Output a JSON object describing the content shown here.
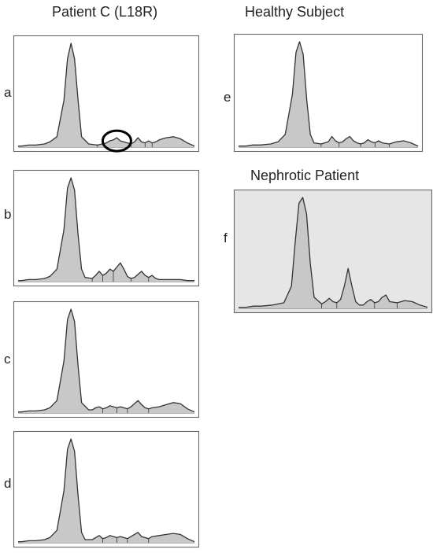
{
  "titles": {
    "left": "Patient C (L18R)",
    "right_top": "Healthy Subject",
    "right_bottom": "Nephrotic Patient"
  },
  "colors": {
    "trace": "#333333",
    "fill": "#c8c8c8",
    "frame": "#666666",
    "shaded_background": "#e6e6e6",
    "highlight_circle": "#000000"
  },
  "chart_data": [
    {
      "type": "area",
      "panel": "a",
      "group": "Patient C (L18R)",
      "x": [
        0.0,
        0.02,
        0.06,
        0.1,
        0.15,
        0.18,
        0.22,
        0.26,
        0.28,
        0.3,
        0.32,
        0.34,
        0.36,
        0.4,
        0.45,
        0.5,
        0.52,
        0.54,
        0.56,
        0.58,
        0.6,
        0.62,
        0.64,
        0.66,
        0.68,
        0.7,
        0.72,
        0.74,
        0.76,
        0.78,
        0.8,
        0.84,
        0.88,
        0.92,
        0.96,
        1.0
      ],
      "y": [
        0.01,
        0.01,
        0.02,
        0.02,
        0.03,
        0.05,
        0.1,
        0.45,
        0.85,
        1.0,
        0.85,
        0.45,
        0.1,
        0.03,
        0.02,
        0.04,
        0.06,
        0.07,
        0.09,
        0.06,
        0.05,
        0.04,
        0.03,
        0.05,
        0.09,
        0.05,
        0.04,
        0.06,
        0.04,
        0.05,
        0.07,
        0.09,
        0.1,
        0.08,
        0.04,
        0.01
      ],
      "marker": "circle around the small peak at x≈0.55"
    },
    {
      "type": "area",
      "panel": "b",
      "group": "Patient C (L18R)",
      "x": [
        0.0,
        0.02,
        0.06,
        0.1,
        0.15,
        0.18,
        0.22,
        0.26,
        0.28,
        0.3,
        0.32,
        0.34,
        0.36,
        0.38,
        0.42,
        0.44,
        0.46,
        0.48,
        0.5,
        0.52,
        0.54,
        0.56,
        0.58,
        0.6,
        0.62,
        0.64,
        0.66,
        0.68,
        0.7,
        0.72,
        0.74,
        0.76,
        0.78,
        0.8,
        0.84,
        0.88,
        0.92,
        0.96,
        1.0
      ],
      "y": [
        0.01,
        0.01,
        0.02,
        0.02,
        0.03,
        0.05,
        0.12,
        0.5,
        0.9,
        1.0,
        0.88,
        0.45,
        0.12,
        0.04,
        0.03,
        0.06,
        0.1,
        0.06,
        0.08,
        0.12,
        0.1,
        0.14,
        0.18,
        0.12,
        0.05,
        0.03,
        0.04,
        0.07,
        0.1,
        0.06,
        0.04,
        0.06,
        0.03,
        0.02,
        0.02,
        0.02,
        0.02,
        0.01,
        0.01
      ]
    },
    {
      "type": "area",
      "panel": "c",
      "group": "Patient C (L18R)",
      "x": [
        0.0,
        0.02,
        0.06,
        0.1,
        0.15,
        0.18,
        0.22,
        0.26,
        0.28,
        0.3,
        0.32,
        0.34,
        0.36,
        0.4,
        0.42,
        0.44,
        0.46,
        0.48,
        0.5,
        0.52,
        0.54,
        0.56,
        0.58,
        0.6,
        0.62,
        0.64,
        0.66,
        0.68,
        0.7,
        0.72,
        0.74,
        0.76,
        0.8,
        0.84,
        0.88,
        0.92,
        0.96,
        1.0
      ],
      "y": [
        0.01,
        0.01,
        0.02,
        0.02,
        0.03,
        0.05,
        0.12,
        0.5,
        0.9,
        1.0,
        0.88,
        0.45,
        0.1,
        0.03,
        0.03,
        0.05,
        0.06,
        0.04,
        0.05,
        0.07,
        0.06,
        0.05,
        0.06,
        0.05,
        0.04,
        0.06,
        0.09,
        0.12,
        0.08,
        0.05,
        0.04,
        0.05,
        0.06,
        0.08,
        0.1,
        0.09,
        0.04,
        0.01
      ]
    },
    {
      "type": "area",
      "panel": "d",
      "group": "Patient C (L18R)",
      "x": [
        0.0,
        0.02,
        0.06,
        0.1,
        0.15,
        0.18,
        0.22,
        0.26,
        0.28,
        0.3,
        0.32,
        0.34,
        0.36,
        0.38,
        0.42,
        0.44,
        0.46,
        0.48,
        0.5,
        0.52,
        0.54,
        0.56,
        0.58,
        0.6,
        0.62,
        0.64,
        0.66,
        0.68,
        0.7,
        0.72,
        0.74,
        0.76,
        0.8,
        0.84,
        0.88,
        0.92,
        0.96,
        1.0
      ],
      "y": [
        0.01,
        0.01,
        0.02,
        0.02,
        0.03,
        0.05,
        0.12,
        0.5,
        0.9,
        1.0,
        0.88,
        0.45,
        0.1,
        0.03,
        0.03,
        0.05,
        0.07,
        0.04,
        0.05,
        0.07,
        0.06,
        0.05,
        0.06,
        0.05,
        0.04,
        0.06,
        0.08,
        0.1,
        0.06,
        0.05,
        0.04,
        0.06,
        0.07,
        0.08,
        0.09,
        0.08,
        0.04,
        0.01
      ]
    },
    {
      "type": "area",
      "panel": "e",
      "group": "Healthy Subject",
      "x": [
        0.0,
        0.04,
        0.08,
        0.12,
        0.18,
        0.22,
        0.26,
        0.3,
        0.32,
        0.34,
        0.36,
        0.38,
        0.4,
        0.42,
        0.46,
        0.5,
        0.52,
        0.54,
        0.56,
        0.58,
        0.6,
        0.62,
        0.64,
        0.66,
        0.68,
        0.7,
        0.72,
        0.74,
        0.76,
        0.78,
        0.8,
        0.84,
        0.88,
        0.92,
        0.96,
        1.0
      ],
      "y": [
        0.01,
        0.01,
        0.02,
        0.02,
        0.03,
        0.05,
        0.12,
        0.5,
        0.9,
        1.0,
        0.88,
        0.45,
        0.12,
        0.04,
        0.03,
        0.05,
        0.1,
        0.06,
        0.04,
        0.05,
        0.08,
        0.1,
        0.06,
        0.04,
        0.03,
        0.04,
        0.07,
        0.05,
        0.04,
        0.06,
        0.04,
        0.03,
        0.05,
        0.06,
        0.04,
        0.01
      ]
    },
    {
      "type": "area",
      "panel": "f",
      "group": "Nephrotic Patient",
      "x": [
        0.0,
        0.04,
        0.08,
        0.12,
        0.18,
        0.24,
        0.28,
        0.3,
        0.32,
        0.34,
        0.36,
        0.38,
        0.4,
        0.44,
        0.46,
        0.48,
        0.5,
        0.52,
        0.54,
        0.56,
        0.58,
        0.6,
        0.62,
        0.64,
        0.66,
        0.68,
        0.7,
        0.72,
        0.74,
        0.76,
        0.78,
        0.8,
        0.84,
        0.88,
        0.92,
        0.96,
        1.0
      ],
      "y": [
        0.01,
        0.01,
        0.02,
        0.02,
        0.03,
        0.05,
        0.2,
        0.6,
        0.95,
        1.0,
        0.85,
        0.4,
        0.1,
        0.04,
        0.06,
        0.09,
        0.06,
        0.05,
        0.08,
        0.2,
        0.36,
        0.2,
        0.06,
        0.03,
        0.03,
        0.06,
        0.08,
        0.05,
        0.06,
        0.1,
        0.12,
        0.06,
        0.05,
        0.07,
        0.06,
        0.03,
        0.01
      ],
      "background": "shaded"
    }
  ]
}
